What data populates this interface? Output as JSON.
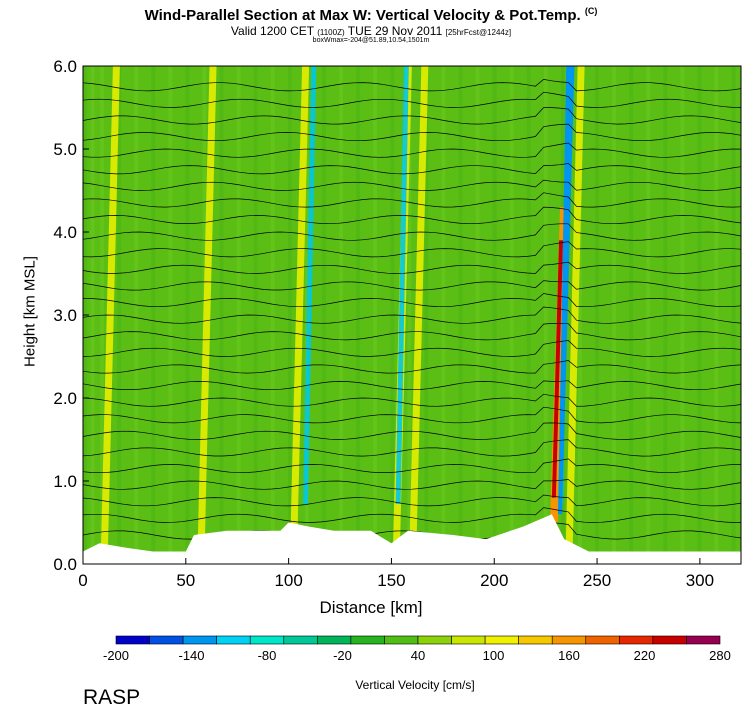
{
  "title": "Wind-Parallel Section at Max W: Vertical Velocity & Pot.Temp.",
  "copyright": "(C)",
  "subtitle_main": "Valid 1200 CET",
  "subtitle_small1": "(1100Z)",
  "subtitle_date": "TUE 29 Nov 2011",
  "subtitle_small2": "[25hrFcst@1244z]",
  "subtitle_line3": "boxWmax=-204@51.89,10.54,1501m",
  "watermark": "RASP",
  "chart_data": {
    "type": "heatmap",
    "xlabel": "Distance [km]",
    "ylabel": "Height [km MSL]",
    "xlim": [
      0,
      320
    ],
    "ylim": [
      0.0,
      6.0
    ],
    "x_ticks": [
      "0",
      "50",
      "100",
      "150",
      "200",
      "250",
      "300"
    ],
    "x_tick_values": [
      0,
      50,
      100,
      150,
      200,
      250,
      300
    ],
    "y_ticks": [
      "0.0",
      "1.0",
      "2.0",
      "3.0",
      "4.0",
      "5.0",
      "6.0"
    ],
    "y_tick_values": [
      0,
      1,
      2,
      3,
      4,
      5,
      6
    ],
    "colorbar_label": "Vertical Velocity [cm/s]",
    "colorbar_ticks": [
      "-200",
      "-140",
      "-80",
      "-20",
      "40",
      "100",
      "160",
      "220",
      "280"
    ],
    "colorbar_range": [
      -200,
      280
    ],
    "colors": [
      "#0000c8",
      "#0050e6",
      "#0096f0",
      "#00d2f5",
      "#00e6c8",
      "#00c896",
      "#00b45a",
      "#28b41e",
      "#50be14",
      "#8cd20a",
      "#c8e600",
      "#f0f000",
      "#f5c800",
      "#f59600",
      "#f06400",
      "#e62800",
      "#c80000",
      "#960050"
    ],
    "background_color": "#5abe14",
    "updraft_bands_km": [
      10,
      57,
      102,
      152,
      160,
      236
    ],
    "downdraft_bands_km": [
      108,
      153,
      232
    ],
    "strong_updraft": {
      "x_km": 229,
      "w_max_cm_s": 220
    },
    "theta_isentropes": "black contours every ~0.2 km, rising over terrain",
    "terrain_height_km": 0.15
  }
}
